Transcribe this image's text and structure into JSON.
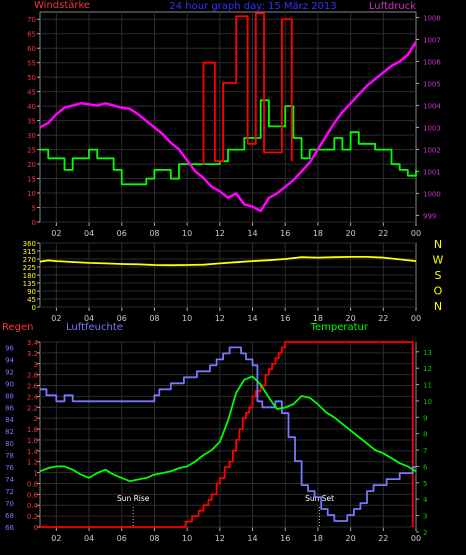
{
  "chart_data": [
    {
      "type": "line",
      "title": "24 hour graph day: 15 März 2013",
      "left_label": "Windstärke",
      "right_label": "Luftdruck",
      "x_ticks": [
        "02",
        "04",
        "06",
        "08",
        "10",
        "12",
        "14",
        "16",
        "18",
        "20",
        "22",
        "00"
      ],
      "y_left_ticks": [
        "0",
        "5",
        "10",
        "15",
        "20",
        "25",
        "30",
        "35",
        "40",
        "45",
        "50",
        "55",
        "60",
        "65",
        "70"
      ],
      "y_right_ticks": [
        "999",
        "1000",
        "1001",
        "1002",
        "1003",
        "1004",
        "1005",
        "1006",
        "1007",
        "1008"
      ],
      "xlim": [
        1,
        24
      ],
      "ylim_left": [
        0,
        72.5
      ],
      "ylim_right": [
        998.7,
        1008.25
      ],
      "grid": true,
      "series": [
        {
          "color": "#00ff00",
          "axis": "left",
          "step": true,
          "x": [
            1,
            1.5,
            2,
            2.5,
            3,
            3.5,
            4,
            4.5,
            5,
            5.5,
            6,
            6.5,
            7,
            7.5,
            8,
            8.5,
            9,
            9.5,
            10,
            10.5,
            11,
            11.5,
            12,
            12.5,
            13,
            13.5,
            14,
            14.5,
            15,
            15.5,
            16,
            16.5,
            17,
            17.5,
            18,
            18.5,
            19,
            19.5,
            20,
            20.5,
            21,
            21.5,
            22,
            22.5,
            23,
            23.5,
            24
          ],
          "y": [
            25,
            22,
            22,
            18,
            22,
            22,
            25,
            22,
            22,
            18,
            13,
            13,
            13,
            15,
            18,
            18,
            15,
            20,
            20,
            20,
            20,
            20,
            21,
            25,
            25,
            29,
            29,
            42,
            33,
            33,
            40,
            29,
            22,
            25,
            25,
            25,
            29,
            25,
            31,
            27,
            27,
            25,
            25,
            20,
            18,
            16,
            18
          ]
        },
        {
          "color": "#ff0000",
          "axis": "left",
          "step": true,
          "x": [
            10.95,
            11,
            11.6,
            11.7,
            12,
            12.2,
            12.8,
            13,
            13.6,
            13.7,
            14.1,
            14.2,
            14.5,
            14.7,
            15.7,
            15.8,
            16.2,
            16.4
          ],
          "y": [
            20,
            55,
            55,
            21,
            21,
            48,
            48,
            71,
            71,
            27,
            27,
            72,
            72,
            24,
            24,
            70,
            70,
            21
          ]
        },
        {
          "color": "#ff00ff",
          "axis": "right",
          "step": false,
          "x": [
            1,
            1.5,
            2,
            2.5,
            3,
            3.5,
            4,
            4.5,
            5,
            5.5,
            6,
            6.5,
            7,
            7.5,
            8,
            8.5,
            9,
            9.5,
            10,
            10.5,
            11,
            11.5,
            12,
            12.5,
            13,
            13.5,
            14,
            14.5,
            15,
            15.5,
            16,
            16.5,
            17,
            17.5,
            18,
            18.5,
            19,
            19.5,
            20,
            20.5,
            21,
            21.5,
            22,
            22.5,
            23,
            23.5,
            24
          ],
          "y": [
            1003,
            1003.2,
            1003.6,
            1003.9,
            1004,
            1004.1,
            1004.05,
            1004,
            1004.1,
            1004,
            1003.9,
            1003.85,
            1003.6,
            1003.3,
            1003,
            1002.7,
            1002.3,
            1002,
            1001.5,
            1001,
            1000.7,
            1000.3,
            1000.1,
            999.8,
            1000,
            999.5,
            999.4,
            999.2,
            999.8,
            1000,
            1000.3,
            1000.6,
            1001,
            1001.4,
            1002,
            1002.6,
            1003.2,
            1003.7,
            1004.1,
            1004.5,
            1004.9,
            1005.2,
            1005.5,
            1005.8,
            1006,
            1006.3,
            1006.9
          ]
        }
      ]
    },
    {
      "type": "line",
      "right_letters": [
        "N",
        "W",
        "S",
        "O",
        "N"
      ],
      "x_ticks": [
        "02",
        "04",
        "06",
        "08",
        "10",
        "12",
        "14",
        "16",
        "18",
        "20",
        "22",
        "00"
      ],
      "y_left_ticks": [
        "0",
        "45",
        "90",
        "135",
        "180",
        "225",
        "270",
        "315",
        "360"
      ],
      "xlim": [
        1,
        24
      ],
      "ylim_left": [
        0,
        360
      ],
      "grid": true,
      "series": [
        {
          "color": "#ffff00",
          "axis": "left",
          "step": false,
          "x": [
            1,
            1.5,
            2,
            3,
            4,
            5,
            6,
            7,
            8,
            9,
            10,
            11,
            12,
            13,
            14,
            15,
            16,
            17,
            18,
            19,
            20,
            21,
            22,
            23,
            24
          ],
          "y": [
            255,
            262,
            258,
            253,
            248,
            245,
            242,
            240,
            236,
            235,
            236,
            238,
            245,
            252,
            258,
            263,
            270,
            280,
            278,
            280,
            282,
            282,
            278,
            268,
            258
          ]
        }
      ]
    },
    {
      "type": "line",
      "left_label": "Regen",
      "mid_label": "Luftfeuchte",
      "right_label": "Temperatur",
      "x_ticks": [
        "02",
        "04",
        "06",
        "08",
        "10",
        "12",
        "14",
        "16",
        "18",
        "20",
        "22",
        "00"
      ],
      "y_left_ticks": [
        "0",
        "0.2",
        "0.4",
        "0.6",
        "0.8",
        "1",
        "1.2",
        "1.4",
        "1.6",
        "1.8",
        "2",
        "2.2",
        "2.4",
        "2.6",
        "2.8",
        "3",
        "3.2",
        "3.4"
      ],
      "y_mid_ticks": [
        "66",
        "68",
        "70",
        "72",
        "74",
        "76",
        "78",
        "80",
        "82",
        "84",
        "86",
        "88",
        "90",
        "92",
        "94",
        "96"
      ],
      "y_right_ticks": [
        "2",
        "3",
        "4",
        "5",
        "6",
        "7",
        "8",
        "9",
        "10",
        "11",
        "12",
        "13"
      ],
      "xlim": [
        1,
        24
      ],
      "ylim_left": [
        0,
        3.4
      ],
      "ylim_mid": [
        66,
        96.9
      ],
      "ylim_right": [
        2.3,
        13.6
      ],
      "grid": true,
      "annotations": [
        {
          "text": "Sun Rise",
          "x": 6.7
        },
        {
          "text": "Sun Set",
          "x": 18.1
        }
      ],
      "series": [
        {
          "color": "#ff0000",
          "axis": "left",
          "step": true,
          "x": [
            1,
            9.9,
            10.3,
            10.7,
            11,
            11.3,
            11.5,
            11.8,
            12,
            12.3,
            12.6,
            12.8,
            13,
            13.2,
            13.4,
            13.6,
            13.8,
            14,
            14.2,
            14.5,
            14.8,
            15,
            15.2,
            15.4,
            15.6,
            15.8,
            16,
            16.2,
            23.8
          ],
          "y": [
            0,
            0.1,
            0.2,
            0.3,
            0.4,
            0.5,
            0.6,
            0.8,
            0.9,
            1.1,
            1.2,
            1.4,
            1.6,
            1.8,
            2,
            2.1,
            2.2,
            2.4,
            2.5,
            2.6,
            2.8,
            2.9,
            3,
            3.1,
            3.2,
            3.3,
            3.4,
            3.4,
            0
          ]
        },
        {
          "color": "#7777ff",
          "axis": "mid",
          "step": true,
          "x": [
            1,
            1.4,
            2,
            2.5,
            3,
            3.5,
            4,
            4.5,
            5,
            5.5,
            6,
            6.5,
            7,
            7.5,
            8,
            8.3,
            8.6,
            9,
            9.4,
            9.8,
            10.2,
            10.6,
            11,
            11.4,
            11.8,
            12.2,
            12.6,
            13,
            13.3,
            13.6,
            14,
            14.3,
            14.6,
            15,
            15.4,
            15.8,
            16.2,
            16.6,
            17,
            17.4,
            17.8,
            18.2,
            18.6,
            19,
            19.4,
            19.8,
            20.2,
            20.6,
            21,
            21.4,
            21.8,
            22.2,
            22.6,
            23,
            23.4,
            23.8,
            24
          ],
          "y": [
            89,
            88,
            87,
            88,
            87,
            87,
            87,
            87,
            87,
            87,
            87,
            87,
            87,
            87,
            88,
            89,
            89,
            90,
            90,
            91,
            91,
            92,
            92,
            93,
            94,
            95,
            96,
            96,
            95,
            94,
            93,
            87,
            86,
            86,
            87,
            85,
            81,
            77,
            73,
            72,
            71,
            69,
            68,
            67,
            67,
            68,
            69,
            70,
            72,
            73,
            73,
            74,
            74,
            75,
            75,
            76,
            76
          ]
        },
        {
          "color": "#00ff00",
          "axis": "right",
          "step": false,
          "x": [
            1,
            1.5,
            2,
            2.5,
            3,
            3.5,
            4,
            4.5,
            5,
            5.5,
            6,
            6.5,
            7,
            7.5,
            8,
            8.5,
            9,
            9.5,
            10,
            10.5,
            11,
            11.5,
            12,
            12.5,
            13,
            13.5,
            14,
            14.5,
            15,
            15.5,
            16,
            16.5,
            17,
            17.5,
            18,
            18.5,
            19,
            19.5,
            20,
            20.5,
            21,
            21.5,
            22,
            22.5,
            23,
            23.5,
            24
          ],
          "y": [
            5.7,
            5.9,
            6,
            6,
            5.8,
            5.5,
            5.3,
            5.6,
            5.8,
            5.5,
            5.3,
            5.1,
            5.2,
            5.3,
            5.5,
            5.6,
            5.7,
            5.9,
            6,
            6.3,
            6.7,
            7,
            7.5,
            8.8,
            10.5,
            11.3,
            11.5,
            11,
            10.2,
            9.5,
            9.6,
            9.8,
            10.3,
            10.2,
            9.8,
            9.3,
            9,
            8.6,
            8.2,
            7.8,
            7.4,
            7,
            6.8,
            6.5,
            6.2,
            6,
            5.7
          ]
        }
      ]
    }
  ]
}
